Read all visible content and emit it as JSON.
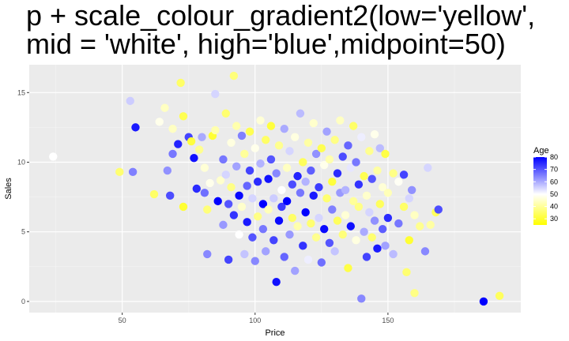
{
  "chart_data": {
    "type": "scatter",
    "title": "p + scale_colour_gradient2(low='yellow',\nmid = 'white', high='blue',midpoint=50)",
    "xlabel": "Price",
    "ylabel": "Sales",
    "xlim": [
      15,
      200
    ],
    "ylim": [
      -0.8,
      17
    ],
    "x_ticks": [
      50,
      100,
      150
    ],
    "y_ticks": [
      0,
      5,
      10,
      15
    ],
    "grid": true,
    "legend": {
      "title": "Age",
      "placement": "right",
      "breaks": [
        30,
        40,
        50,
        60,
        70,
        80
      ],
      "colors": {
        "low": "#ffff00",
        "mid": "#ffffff",
        "high": "#0000ff"
      },
      "midpoint": 50,
      "range": [
        25,
        80
      ]
    },
    "points": [
      [
        24,
        10.4,
        50
      ],
      [
        49,
        9.3,
        36
      ],
      [
        53,
        14.4,
        56
      ],
      [
        54,
        9.3,
        65
      ],
      [
        55,
        12.5,
        77
      ],
      [
        62,
        7.7,
        35
      ],
      [
        64,
        12.9,
        48
      ],
      [
        66,
        13.9,
        44
      ],
      [
        67,
        9.4,
        63
      ],
      [
        68,
        7.6,
        71
      ],
      [
        69,
        12.4,
        44
      ],
      [
        69,
        10.6,
        66
      ],
      [
        71,
        11.3,
        76
      ],
      [
        72,
        15.7,
        35
      ],
      [
        73,
        13.3,
        33
      ],
      [
        73,
        6.8,
        30
      ],
      [
        75,
        11.8,
        72
      ],
      [
        76,
        11.5,
        31
      ],
      [
        77,
        10.3,
        78
      ],
      [
        78,
        8.1,
        75
      ],
      [
        79,
        10.9,
        39
      ],
      [
        80,
        11.8,
        60
      ],
      [
        81,
        7.8,
        67
      ],
      [
        81,
        9.6,
        46
      ],
      [
        82,
        3.4,
        64
      ],
      [
        82,
        6.6,
        37
      ],
      [
        83,
        8.5,
        48
      ],
      [
        84,
        11.9,
        30
      ],
      [
        85,
        12.3,
        42
      ],
      [
        85,
        14.9,
        55
      ],
      [
        86,
        7.2,
        80
      ],
      [
        87,
        8.7,
        45
      ],
      [
        88,
        10.2,
        66
      ],
      [
        88,
        5.5,
        62
      ],
      [
        89,
        13.5,
        36
      ],
      [
        89,
        9.1,
        55
      ],
      [
        90,
        7.0,
        70
      ],
      [
        90,
        3.0,
        72
      ],
      [
        91,
        11.4,
        47
      ],
      [
        91,
        8.2,
        38
      ],
      [
        92,
        16.2,
        37
      ],
      [
        92,
        6.2,
        74
      ],
      [
        93,
        12.6,
        42
      ],
      [
        93,
        9.7,
        61
      ],
      [
        94,
        4.8,
        50
      ],
      [
        94,
        7.6,
        79
      ],
      [
        95,
        11.9,
        65
      ],
      [
        95,
        6.8,
        45
      ],
      [
        96,
        10.6,
        40
      ],
      [
        96,
        3.4,
        57
      ],
      [
        97,
        8.3,
        68
      ],
      [
        97,
        5.7,
        77
      ],
      [
        98,
        12.2,
        33
      ],
      [
        98,
        9.4,
        72
      ],
      [
        99,
        7.4,
        55
      ],
      [
        99,
        4.6,
        70
      ],
      [
        100,
        11.0,
        48
      ],
      [
        100,
        2.9,
        64
      ],
      [
        101,
        8.6,
        75
      ],
      [
        101,
        6.1,
        38
      ],
      [
        102,
        13.0,
        46
      ],
      [
        102,
        9.9,
        59
      ],
      [
        103,
        7.0,
        80
      ],
      [
        103,
        5.2,
        66
      ],
      [
        104,
        11.6,
        35
      ],
      [
        104,
        3.6,
        61
      ],
      [
        105,
        8.8,
        78
      ],
      [
        105,
        6.6,
        43
      ],
      [
        106,
        10.2,
        70
      ],
      [
        106,
        12.6,
        31
      ],
      [
        107,
        4.4,
        72
      ],
      [
        107,
        7.4,
        56
      ],
      [
        108,
        9.2,
        64
      ],
      [
        108,
        1.4,
        78
      ],
      [
        109,
        11.2,
        39
      ],
      [
        109,
        5.8,
        79
      ],
      [
        110,
        8.0,
        50
      ],
      [
        110,
        6.8,
        73
      ],
      [
        111,
        12.4,
        60
      ],
      [
        111,
        3.2,
        68
      ],
      [
        112,
        9.6,
        44
      ],
      [
        112,
        7.2,
        80
      ],
      [
        113,
        10.8,
        55
      ],
      [
        113,
        4.8,
        62
      ],
      [
        114,
        8.4,
        71
      ],
      [
        114,
        6.0,
        35
      ],
      [
        115,
        11.8,
        47
      ],
      [
        115,
        2.2,
        61
      ],
      [
        116,
        9.0,
        76
      ],
      [
        116,
        5.4,
        42
      ],
      [
        117,
        7.8,
        66
      ],
      [
        117,
        13.5,
        58
      ],
      [
        118,
        10.0,
        34
      ],
      [
        118,
        4.0,
        74
      ],
      [
        119,
        8.6,
        59
      ],
      [
        119,
        6.4,
        80
      ],
      [
        120,
        11.4,
        41
      ],
      [
        120,
        3.0,
        52
      ],
      [
        121,
        9.4,
        69
      ],
      [
        121,
        5.6,
        36
      ],
      [
        122,
        7.6,
        77
      ],
      [
        122,
        12.8,
        45
      ],
      [
        123,
        10.6,
        63
      ],
      [
        123,
        4.6,
        39
      ],
      [
        124,
        8.2,
        73
      ],
      [
        124,
        6.0,
        55
      ],
      [
        125,
        11.0,
        33
      ],
      [
        125,
        2.8,
        67
      ],
      [
        126,
        9.8,
        48
      ],
      [
        126,
        5.2,
        79
      ],
      [
        127,
        7.4,
        36
      ],
      [
        127,
        12.2,
        61
      ],
      [
        128,
        10.2,
        42
      ],
      [
        128,
        4.2,
        70
      ],
      [
        129,
        8.6,
        31
      ],
      [
        129,
        6.6,
        65
      ],
      [
        130,
        11.6,
        38
      ],
      [
        130,
        3.6,
        57
      ],
      [
        131,
        9.2,
        75
      ],
      [
        131,
        5.8,
        34
      ],
      [
        132,
        7.8,
        62
      ],
      [
        132,
        13.0,
        44
      ],
      [
        133,
        10.4,
        71
      ],
      [
        133,
        4.8,
        37
      ],
      [
        134,
        8.0,
        59
      ],
      [
        134,
        6.2,
        46
      ],
      [
        135,
        11.2,
        68
      ],
      [
        135,
        2.4,
        32
      ],
      [
        136,
        9.6,
        53
      ],
      [
        136,
        5.4,
        78
      ],
      [
        137,
        7.2,
        40
      ],
      [
        137,
        12.6,
        35
      ],
      [
        138,
        10.0,
        66
      ],
      [
        138,
        4.4,
        47
      ],
      [
        139,
        8.4,
        74
      ],
      [
        139,
        6.8,
        38
      ],
      [
        140,
        11.8,
        52
      ],
      [
        140,
        0.2,
        64
      ],
      [
        141,
        9.0,
        33
      ],
      [
        141,
        5.0,
        60
      ],
      [
        142,
        7.6,
        45
      ],
      [
        142,
        3.2,
        72
      ],
      [
        143,
        10.8,
        39
      ],
      [
        143,
        6.4,
        55
      ],
      [
        144,
        8.8,
        70
      ],
      [
        144,
        4.6,
        36
      ],
      [
        145,
        12.0,
        48
      ],
      [
        145,
        5.8,
        63
      ],
      [
        146,
        9.4,
        41
      ],
      [
        146,
        3.8,
        77
      ],
      [
        147,
        7.0,
        34
      ],
      [
        147,
        11.0,
        58
      ],
      [
        148,
        8.2,
        46
      ],
      [
        148,
        5.2,
        69
      ],
      [
        149,
        10.6,
        32
      ],
      [
        149,
        4.0,
        61
      ],
      [
        150,
        7.8,
        43
      ],
      [
        150,
        6.0,
        75
      ],
      [
        152,
        9.2,
        38
      ],
      [
        152,
        3.4,
        58
      ],
      [
        154,
        8.6,
        49
      ],
      [
        154,
        5.6,
        66
      ],
      [
        156,
        9.1,
        72
      ],
      [
        156,
        6.8,
        35
      ],
      [
        157,
        2.1,
        36
      ],
      [
        158,
        7.4,
        55
      ],
      [
        158,
        4.4,
        30
      ],
      [
        159,
        8.0,
        63
      ],
      [
        160,
        0.6,
        38
      ],
      [
        160,
        6.2,
        44
      ],
      [
        162,
        5.4,
        39
      ],
      [
        164,
        3.6,
        64
      ],
      [
        165,
        9.6,
        55
      ],
      [
        166,
        5.5,
        41
      ],
      [
        168,
        6.4,
        34
      ],
      [
        169,
        6.6,
        71
      ],
      [
        186,
        0.0,
        80
      ],
      [
        192,
        0.4,
        34
      ]
    ]
  }
}
